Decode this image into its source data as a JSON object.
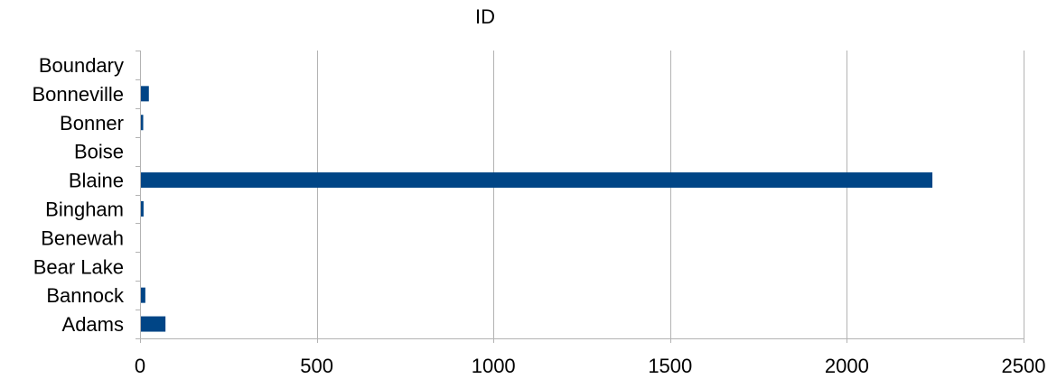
{
  "chart_data": {
    "type": "bar",
    "orientation": "horizontal",
    "title": "ID",
    "xlabel": "",
    "ylabel": "",
    "categories": [
      "Adams",
      "Bannock",
      "Bear Lake",
      "Benewah",
      "Bingham",
      "Blaine",
      "Boise",
      "Bonner",
      "Bonneville",
      "Boundary"
    ],
    "values": [
      72,
      15,
      0,
      0,
      10,
      2242,
      0,
      9,
      25,
      0
    ],
    "xlim": [
      0,
      2500
    ],
    "xticks": [
      0,
      500,
      1000,
      1500,
      2000,
      2500
    ],
    "grid": true,
    "legend": "none",
    "colors": {
      "bar": "#004586",
      "grid": "#b3b3b3",
      "axis": "#b3b3b3",
      "text": "#000000"
    }
  }
}
